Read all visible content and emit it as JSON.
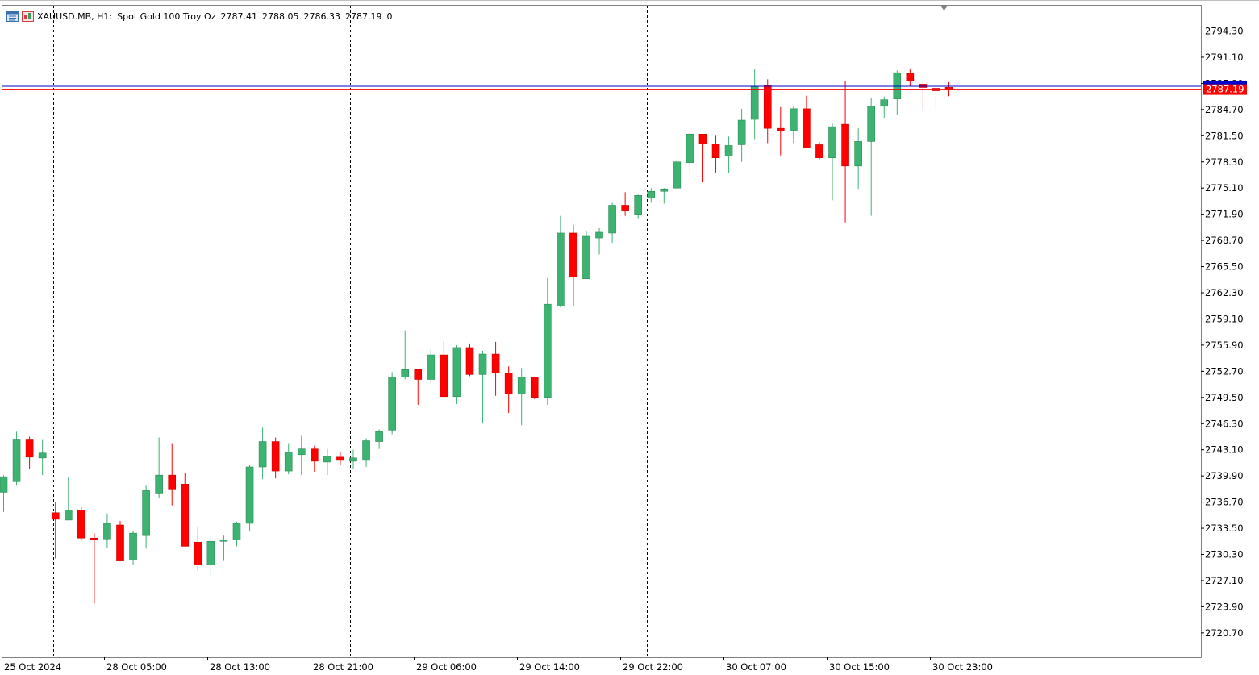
{
  "header": {
    "symbol": "XAUUSD.MB, H1:",
    "description": "Spot Gold 100 Troy Oz",
    "open": "2787.41",
    "high": "2788.05",
    "low": "2786.33",
    "close": "2787.19",
    "volume": "0",
    "icons": [
      "chart-window-icon",
      "trade-panel-icon"
    ]
  },
  "colors": {
    "bull": "#3cb371",
    "bear": "#ff0000",
    "ask_line": "#0000cd",
    "bid_line": "#ff0000",
    "separator": "#000000",
    "frame": "#808080"
  },
  "chart_data": {
    "type": "candlestick",
    "timeframe": "H1",
    "price_axis_labels": [
      "2794.30",
      "2791.10",
      "2787.90",
      "2784.70",
      "2781.50",
      "2778.30",
      "2775.10",
      "2771.90",
      "2768.70",
      "2765.50",
      "2762.30",
      "2759.10",
      "2755.90",
      "2752.70",
      "2749.50",
      "2746.30",
      "2743.10",
      "2739.90",
      "2736.70",
      "2733.50",
      "2730.30",
      "2727.10",
      "2723.90",
      "2720.70"
    ],
    "time_axis_labels": [
      "25 Oct 2024",
      "28 Oct 05:00",
      "28 Oct 13:00",
      "28 Oct 21:00",
      "29 Oct 06:00",
      "29 Oct 14:00",
      "29 Oct 22:00",
      "30 Oct 07:00",
      "30 Oct 15:00",
      "30 Oct 23:00"
    ],
    "ylim": [
      2718.0,
      2797.0
    ],
    "current_price": "2787.19",
    "bid": 2787.19,
    "ask": 2787.55,
    "day_separators": [
      "28 Oct",
      "29 Oct",
      "30 Oct",
      "31 Oct"
    ],
    "candles": [
      {
        "o": 2737.9,
        "h": 2740.0,
        "l": 2735.5,
        "c": 2739.8
      },
      {
        "o": 2739.2,
        "h": 2745.3,
        "l": 2738.7,
        "c": 2744.4
      },
      {
        "o": 2744.4,
        "h": 2744.7,
        "l": 2740.8,
        "c": 2742.2
      },
      {
        "o": 2742.1,
        "h": 2744.4,
        "l": 2740.0,
        "c": 2742.7
      },
      {
        "o": 2735.4,
        "h": 2736.7,
        "l": 2729.8,
        "c": 2734.6
      },
      {
        "o": 2734.5,
        "h": 2739.8,
        "l": 2734.5,
        "c": 2735.7
      },
      {
        "o": 2735.7,
        "h": 2736.1,
        "l": 2732.0,
        "c": 2732.3
      },
      {
        "o": 2732.3,
        "h": 2732.9,
        "l": 2724.3,
        "c": 2732.2
      },
      {
        "o": 2732.2,
        "h": 2735.3,
        "l": 2731.1,
        "c": 2734.1
      },
      {
        "o": 2733.9,
        "h": 2734.4,
        "l": 2729.5,
        "c": 2729.5
      },
      {
        "o": 2729.6,
        "h": 2733.2,
        "l": 2729.0,
        "c": 2732.9
      },
      {
        "o": 2732.6,
        "h": 2738.7,
        "l": 2731.0,
        "c": 2738.1
      },
      {
        "o": 2737.8,
        "h": 2744.6,
        "l": 2737.2,
        "c": 2740.0
      },
      {
        "o": 2740.0,
        "h": 2743.9,
        "l": 2736.3,
        "c": 2738.3
      },
      {
        "o": 2738.9,
        "h": 2740.3,
        "l": 2731.3,
        "c": 2731.3
      },
      {
        "o": 2731.8,
        "h": 2733.6,
        "l": 2728.3,
        "c": 2729.0
      },
      {
        "o": 2729.0,
        "h": 2732.6,
        "l": 2727.8,
        "c": 2731.9
      },
      {
        "o": 2731.9,
        "h": 2732.6,
        "l": 2729.5,
        "c": 2732.1
      },
      {
        "o": 2732.1,
        "h": 2734.3,
        "l": 2731.3,
        "c": 2734.1
      },
      {
        "o": 2734.1,
        "h": 2741.3,
        "l": 2733.1,
        "c": 2741.0
      },
      {
        "o": 2741.0,
        "h": 2745.8,
        "l": 2739.5,
        "c": 2744.1
      },
      {
        "o": 2744.1,
        "h": 2744.6,
        "l": 2739.6,
        "c": 2740.5
      },
      {
        "o": 2740.5,
        "h": 2743.9,
        "l": 2740.1,
        "c": 2742.8
      },
      {
        "o": 2742.5,
        "h": 2744.8,
        "l": 2740.0,
        "c": 2743.2
      },
      {
        "o": 2743.2,
        "h": 2743.6,
        "l": 2740.4,
        "c": 2741.7
      },
      {
        "o": 2741.6,
        "h": 2743.2,
        "l": 2740.0,
        "c": 2742.3
      },
      {
        "o": 2742.2,
        "h": 2742.8,
        "l": 2741.3,
        "c": 2741.8
      },
      {
        "o": 2741.7,
        "h": 2743.1,
        "l": 2740.7,
        "c": 2742.1
      },
      {
        "o": 2741.8,
        "h": 2744.5,
        "l": 2741.0,
        "c": 2744.2
      },
      {
        "o": 2744.1,
        "h": 2745.6,
        "l": 2743.2,
        "c": 2745.3
      },
      {
        "o": 2745.5,
        "h": 2752.6,
        "l": 2745.0,
        "c": 2752.0
      },
      {
        "o": 2752.0,
        "h": 2757.7,
        "l": 2751.7,
        "c": 2752.9
      },
      {
        "o": 2752.9,
        "h": 2753.0,
        "l": 2748.6,
        "c": 2751.7
      },
      {
        "o": 2751.7,
        "h": 2755.4,
        "l": 2751.2,
        "c": 2754.7
      },
      {
        "o": 2754.7,
        "h": 2756.4,
        "l": 2749.4,
        "c": 2749.6
      },
      {
        "o": 2749.6,
        "h": 2755.9,
        "l": 2748.7,
        "c": 2755.6
      },
      {
        "o": 2755.6,
        "h": 2756.1,
        "l": 2752.1,
        "c": 2752.3
      },
      {
        "o": 2752.3,
        "h": 2755.2,
        "l": 2746.3,
        "c": 2754.8
      },
      {
        "o": 2754.8,
        "h": 2756.3,
        "l": 2749.7,
        "c": 2752.5
      },
      {
        "o": 2752.5,
        "h": 2753.3,
        "l": 2747.6,
        "c": 2749.9
      },
      {
        "o": 2749.9,
        "h": 2753.1,
        "l": 2746.1,
        "c": 2752.0
      },
      {
        "o": 2752.0,
        "h": 2752.0,
        "l": 2749.3,
        "c": 2749.5
      },
      {
        "o": 2749.5,
        "h": 2764.1,
        "l": 2748.6,
        "c": 2760.9
      },
      {
        "o": 2760.7,
        "h": 2771.7,
        "l": 2760.5,
        "c": 2769.6
      },
      {
        "o": 2769.6,
        "h": 2770.6,
        "l": 2760.7,
        "c": 2764.2
      },
      {
        "o": 2764.0,
        "h": 2769.9,
        "l": 2764.0,
        "c": 2769.2
      },
      {
        "o": 2769.0,
        "h": 2770.2,
        "l": 2767.0,
        "c": 2769.7
      },
      {
        "o": 2769.6,
        "h": 2773.3,
        "l": 2768.4,
        "c": 2773.0
      },
      {
        "o": 2773.0,
        "h": 2774.6,
        "l": 2771.7,
        "c": 2772.3
      },
      {
        "o": 2771.9,
        "h": 2774.3,
        "l": 2771.4,
        "c": 2774.2
      },
      {
        "o": 2773.9,
        "h": 2775.1,
        "l": 2773.3,
        "c": 2774.7
      },
      {
        "o": 2774.7,
        "h": 2775.1,
        "l": 2773.2,
        "c": 2775.0
      },
      {
        "o": 2775.1,
        "h": 2778.5,
        "l": 2775.0,
        "c": 2778.3
      },
      {
        "o": 2778.2,
        "h": 2782.0,
        "l": 2776.9,
        "c": 2781.7
      },
      {
        "o": 2781.7,
        "h": 2781.7,
        "l": 2775.8,
        "c": 2780.5
      },
      {
        "o": 2780.5,
        "h": 2781.5,
        "l": 2777.0,
        "c": 2778.8
      },
      {
        "o": 2779.0,
        "h": 2781.4,
        "l": 2777.0,
        "c": 2780.3
      },
      {
        "o": 2780.4,
        "h": 2784.8,
        "l": 2778.3,
        "c": 2783.4
      },
      {
        "o": 2783.5,
        "h": 2789.6,
        "l": 2781.1,
        "c": 2787.5
      },
      {
        "o": 2787.7,
        "h": 2788.4,
        "l": 2780.6,
        "c": 2782.4
      },
      {
        "o": 2782.4,
        "h": 2785.0,
        "l": 2779.1,
        "c": 2782.1
      },
      {
        "o": 2782.1,
        "h": 2785.1,
        "l": 2780.6,
        "c": 2784.8
      },
      {
        "o": 2784.8,
        "h": 2786.4,
        "l": 2780.0,
        "c": 2780.0
      },
      {
        "o": 2780.4,
        "h": 2780.7,
        "l": 2778.6,
        "c": 2778.8
      },
      {
        "o": 2778.8,
        "h": 2783.1,
        "l": 2773.6,
        "c": 2782.6
      },
      {
        "o": 2782.9,
        "h": 2788.2,
        "l": 2770.9,
        "c": 2777.8
      },
      {
        "o": 2777.8,
        "h": 2782.4,
        "l": 2775.0,
        "c": 2780.8
      },
      {
        "o": 2780.8,
        "h": 2786.1,
        "l": 2771.7,
        "c": 2785.1
      },
      {
        "o": 2785.1,
        "h": 2786.3,
        "l": 2783.7,
        "c": 2785.9
      },
      {
        "o": 2786.0,
        "h": 2789.5,
        "l": 2784.1,
        "c": 2789.2
      },
      {
        "o": 2789.1,
        "h": 2789.7,
        "l": 2787.5,
        "c": 2788.2
      },
      {
        "o": 2787.8,
        "h": 2788.0,
        "l": 2784.5,
        "c": 2787.4
      },
      {
        "o": 2787.3,
        "h": 2787.9,
        "l": 2784.7,
        "c": 2787.0
      },
      {
        "o": 2787.41,
        "h": 2788.05,
        "l": 2786.33,
        "c": 2787.19
      }
    ]
  }
}
